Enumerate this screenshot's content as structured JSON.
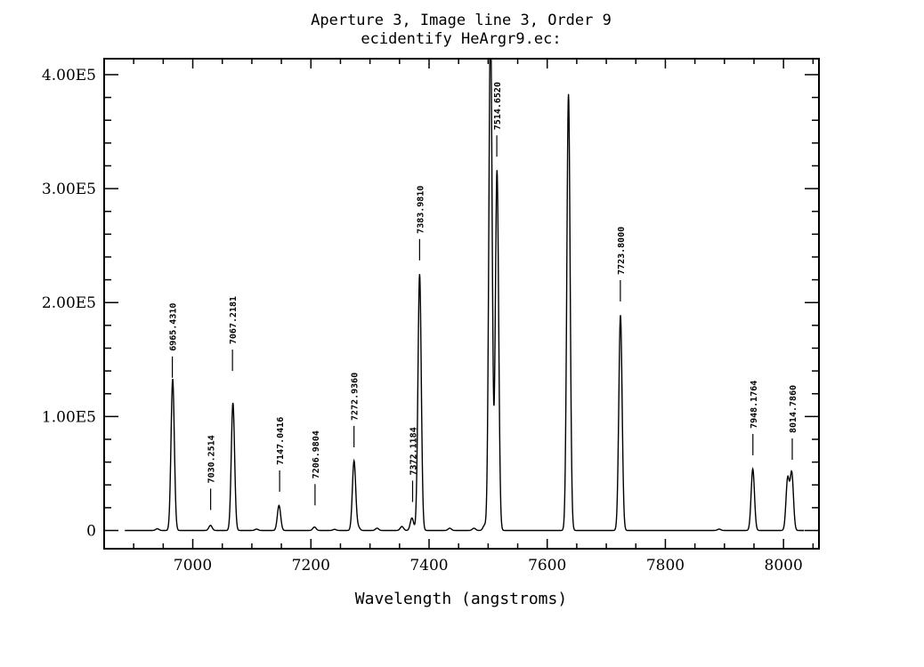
{
  "chart_data": {
    "type": "line",
    "title": "Aperture 3, Image line 3, Order 9",
    "subtitle": "ecidentify HeArgr9.ec:",
    "xlabel": "Wavelength (angstroms)",
    "ylabel": "",
    "xlim": [
      6850,
      8060
    ],
    "ylim": [
      -16000,
      414000
    ],
    "x_ticks": [
      7000,
      7200,
      7400,
      7600,
      7800,
      8000
    ],
    "x_tick_labels": [
      "7000",
      "7200",
      "7400",
      "7600",
      "7800",
      "8000"
    ],
    "y_ticks": [
      0,
      100000,
      200000,
      300000,
      400000
    ],
    "y_tick_labels": [
      "0",
      "1.00E5",
      "2.00E5",
      "3.00E5",
      "4.00E5"
    ],
    "x_start": 6885,
    "x_end": 8035,
    "series": [
      {
        "peaks": [
          {
            "x": 6940,
            "y": 1500
          },
          {
            "x": 6966,
            "y": 133000
          },
          {
            "x": 7030,
            "y": 4500
          },
          {
            "x": 7068,
            "y": 112000
          },
          {
            "x": 7108,
            "y": 1200
          },
          {
            "x": 7146,
            "y": 22000
          },
          {
            "x": 7206,
            "y": 3000
          },
          {
            "x": 7240,
            "y": 1000
          },
          {
            "x": 7273,
            "y": 61000
          },
          {
            "x": 7280,
            "y": 3000
          },
          {
            "x": 7312,
            "y": 2000
          },
          {
            "x": 7354,
            "y": 3500
          },
          {
            "x": 7371,
            "y": 11000
          },
          {
            "x": 7384,
            "y": 225000
          },
          {
            "x": 7435,
            "y": 2000
          },
          {
            "x": 7476,
            "y": 2000
          },
          {
            "x": 7494,
            "y": 4500
          },
          {
            "x": 7504,
            "y": 450000
          },
          {
            "x": 7515,
            "y": 316000
          },
          {
            "x": 7636,
            "y": 383000
          },
          {
            "x": 7724,
            "y": 189000
          },
          {
            "x": 7891,
            "y": 1200
          },
          {
            "x": 7948,
            "y": 54000
          },
          {
            "x": 8007,
            "y": 45000
          },
          {
            "x": 8014,
            "y": 50000
          }
        ]
      }
    ],
    "annotations": [
      {
        "wavelength": 6965.431,
        "label": "6965.4310",
        "marker_y": 134000
      },
      {
        "wavelength": 7030.2514,
        "label": "7030.2514",
        "marker_y": 18000
      },
      {
        "wavelength": 7067.2181,
        "label": "7067.2181",
        "marker_y": 140000
      },
      {
        "wavelength": 7147.0416,
        "label": "7147.0416",
        "marker_y": 34000
      },
      {
        "wavelength": 7206.9804,
        "label": "7206.9804",
        "marker_y": 22000
      },
      {
        "wavelength": 7272.936,
        "label": "7272.9360",
        "marker_y": 73000
      },
      {
        "wavelength": 7372.1184,
        "label": "7372.1184",
        "marker_y": 25000
      },
      {
        "wavelength": 7383.981,
        "label": "7383.9810",
        "marker_y": 237000
      },
      {
        "wavelength": 7514.652,
        "label": "7514.6520",
        "marker_y": 328000
      },
      {
        "wavelength": 7723.8,
        "label": "7723.8000",
        "marker_y": 201000
      },
      {
        "wavelength": 7948.1764,
        "label": "7948.1764",
        "marker_y": 66000
      },
      {
        "wavelength": 8014.786,
        "label": "8014.7860",
        "marker_y": 62000
      }
    ]
  }
}
